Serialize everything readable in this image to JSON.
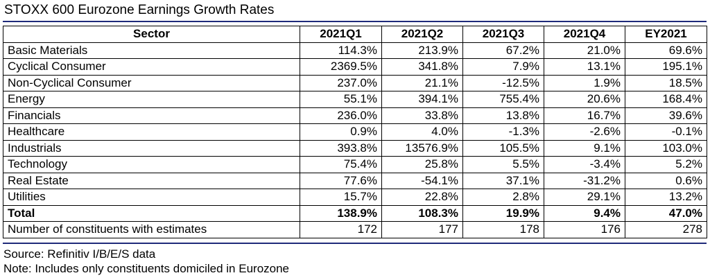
{
  "title": "STOXX 600 Eurozone Earnings Growth Rates",
  "headers": [
    "Sector",
    "2021Q1",
    "2021Q2",
    "2021Q3",
    "2021Q4",
    "EY2021"
  ],
  "rows": [
    [
      "Basic Materials",
      "114.3%",
      "213.9%",
      "67.2%",
      "21.0%",
      "69.6%"
    ],
    [
      "Cyclical Consumer",
      "2369.5%",
      "341.8%",
      "7.9%",
      "13.1%",
      "195.1%"
    ],
    [
      "Non-Cyclical Consumer",
      "237.0%",
      "21.1%",
      "-12.5%",
      "1.9%",
      "18.5%"
    ],
    [
      "Energy",
      "55.1%",
      "394.1%",
      "755.4%",
      "20.6%",
      "168.4%"
    ],
    [
      "Financials",
      "236.0%",
      "33.8%",
      "13.8%",
      "16.7%",
      "39.6%"
    ],
    [
      "Healthcare",
      "0.9%",
      "4.0%",
      "-1.3%",
      "-2.6%",
      "-0.1%"
    ],
    [
      "Industrials",
      "393.8%",
      "13576.9%",
      "105.5%",
      "9.1%",
      "103.0%"
    ],
    [
      "Technology",
      "75.4%",
      "25.8%",
      "5.5%",
      "-3.4%",
      "5.2%"
    ],
    [
      "Real Estate",
      "77.6%",
      "-54.1%",
      "37.1%",
      "-31.2%",
      "0.6%"
    ],
    [
      "Utilities",
      "15.7%",
      "22.8%",
      "2.8%",
      "29.1%",
      "13.2%"
    ]
  ],
  "total": [
    "Total",
    "138.9%",
    "108.3%",
    "19.9%",
    "9.4%",
    "47.0%"
  ],
  "constituents": [
    "Number of constituents with estimates",
    "172",
    "177",
    "178",
    "176",
    "278"
  ],
  "source": "Source: Refinitiv I/B/E/S data",
  "note": "Note: Includes only constituents domiciled in Eurozone",
  "colors": {
    "rule": "#1f2a7a"
  }
}
